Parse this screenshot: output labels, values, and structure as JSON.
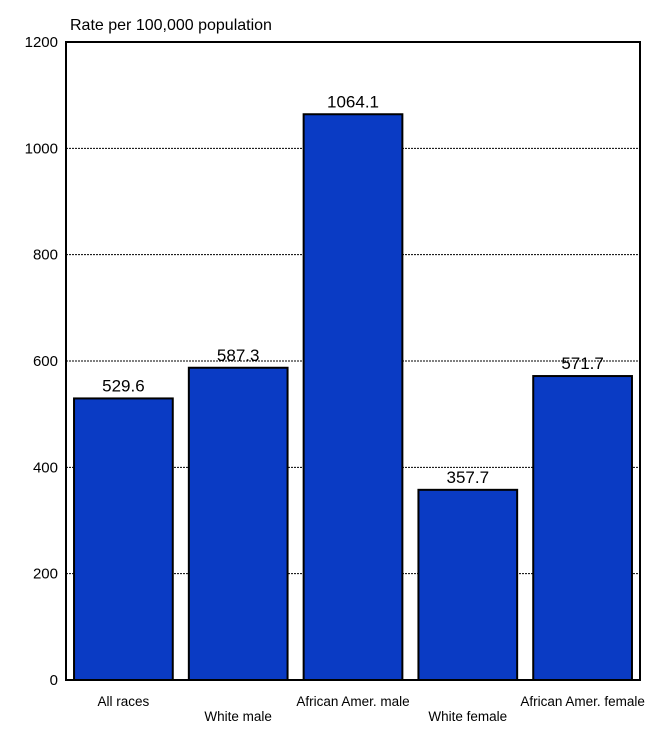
{
  "colors": {
    "bar_fill": "#0a3bc4",
    "bar_stroke": "#000000",
    "gridline": "#000000",
    "background": "#ffffff"
  },
  "chart_data": {
    "type": "bar",
    "title": "",
    "ylabel": "Rate per 100,000 population",
    "xlabel": "",
    "categories": [
      "All races",
      "White male",
      "African Amer. male",
      "White female",
      "African Amer. female"
    ],
    "values": [
      529.6,
      587.3,
      1064.1,
      357.7,
      571.7
    ],
    "value_labels": [
      "529.6",
      "587.3",
      "1064.1",
      "357.7",
      "571.7"
    ],
    "ylim": [
      0,
      1200
    ],
    "yticks": [
      0,
      200,
      400,
      600,
      800,
      1000,
      1200
    ],
    "ytick_labels": [
      "0",
      "200",
      "400",
      "600",
      "800",
      "1000",
      "1200"
    ],
    "grid": true,
    "legend": "none",
    "category_label_rows": [
      "upper",
      "lower",
      "upper",
      "lower",
      "upper"
    ]
  }
}
